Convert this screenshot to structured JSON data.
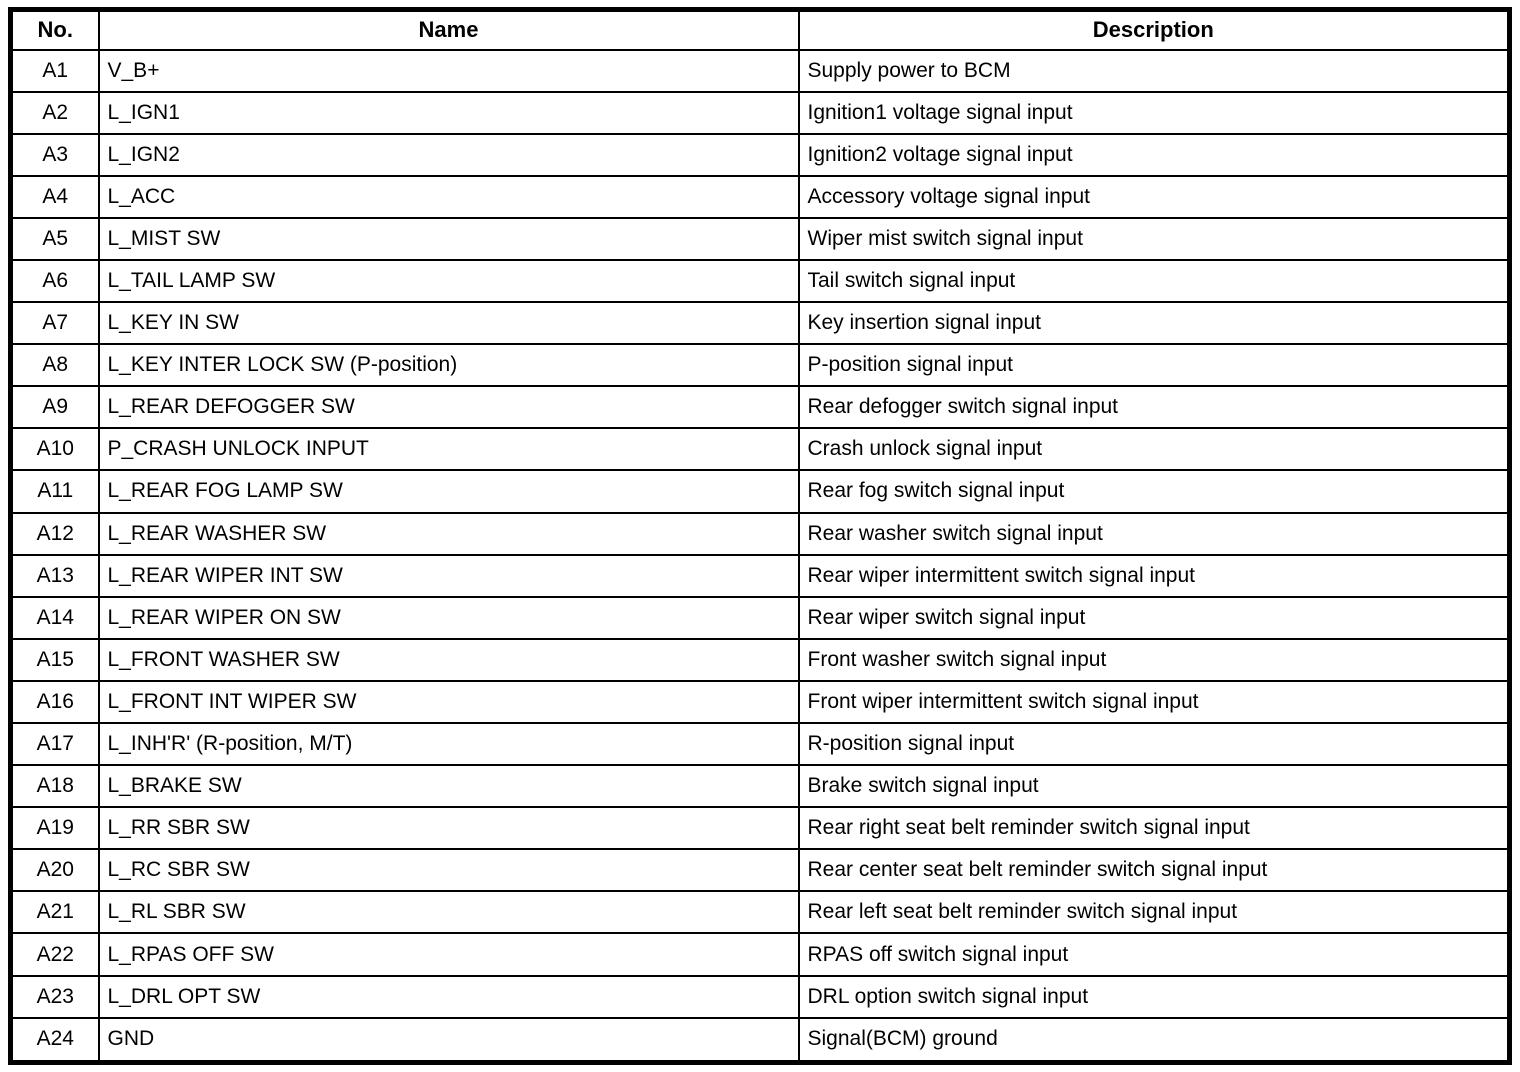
{
  "colors": {
    "border": "#000000",
    "background": "#ffffff",
    "text": "#000000"
  },
  "table": {
    "columns": [
      {
        "key": "no",
        "label": "No."
      },
      {
        "key": "name",
        "label": "Name"
      },
      {
        "key": "description",
        "label": "Description"
      }
    ],
    "rows": [
      {
        "no": "A1",
        "name": "V_B+",
        "description": "Supply power to BCM"
      },
      {
        "no": "A2",
        "name": "L_IGN1",
        "description": "Ignition1 voltage signal input"
      },
      {
        "no": "A3",
        "name": "L_IGN2",
        "description": "Ignition2 voltage signal input"
      },
      {
        "no": "A4",
        "name": "L_ACC",
        "description": "Accessory voltage signal input"
      },
      {
        "no": "A5",
        "name": "L_MIST SW",
        "description": "Wiper mist switch signal input"
      },
      {
        "no": "A6",
        "name": "L_TAIL LAMP SW",
        "description": "Tail switch signal input"
      },
      {
        "no": "A7",
        "name": "L_KEY IN SW",
        "description": "Key insertion signal input"
      },
      {
        "no": "A8",
        "name": "L_KEY INTER LOCK SW (P-position)",
        "description": "P-position signal input"
      },
      {
        "no": "A9",
        "name": "L_REAR DEFOGGER SW",
        "description": "Rear defogger switch signal input"
      },
      {
        "no": "A10",
        "name": "P_CRASH UNLOCK INPUT",
        "description": "Crash unlock signal input"
      },
      {
        "no": "A11",
        "name": "L_REAR FOG LAMP SW",
        "description": "Rear fog switch signal input"
      },
      {
        "no": "A12",
        "name": "L_REAR WASHER SW",
        "description": "Rear washer switch signal input"
      },
      {
        "no": "A13",
        "name": "L_REAR WIPER INT SW",
        "description": "Rear wiper intermittent switch signal input"
      },
      {
        "no": "A14",
        "name": "L_REAR WIPER ON SW",
        "description": "Rear wiper switch signal input"
      },
      {
        "no": "A15",
        "name": "L_FRONT WASHER SW",
        "description": "Front washer switch signal input"
      },
      {
        "no": "A16",
        "name": "L_FRONT INT WIPER SW",
        "description": "Front wiper intermittent switch signal input"
      },
      {
        "no": "A17",
        "name": "L_INH'R' (R-position, M/T)",
        "description": "R-position signal input"
      },
      {
        "no": "A18",
        "name": "L_BRAKE SW",
        "description": "Brake switch signal input"
      },
      {
        "no": "A19",
        "name": "L_RR SBR SW",
        "description": "Rear right seat belt reminder switch signal input"
      },
      {
        "no": "A20",
        "name": "L_RC SBR SW",
        "description": "Rear center seat belt reminder switch signal input"
      },
      {
        "no": "A21",
        "name": "L_RL SBR SW",
        "description": "Rear left seat belt reminder switch signal input"
      },
      {
        "no": "A22",
        "name": "L_RPAS OFF SW",
        "description": "RPAS off switch signal input"
      },
      {
        "no": "A23",
        "name": "L_DRL OPT SW",
        "description": "DRL option switch signal input"
      },
      {
        "no": "A24",
        "name": "GND",
        "description": "Signal(BCM) ground"
      }
    ]
  }
}
